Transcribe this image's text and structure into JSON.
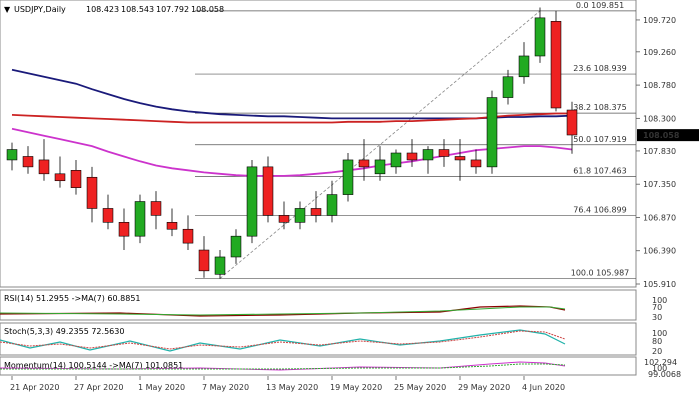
{
  "header": {
    "symbol_label": "USDJPY,Daily",
    "open": "108.423",
    "high": "108.543",
    "low": "107.792",
    "close": "108.058"
  },
  "price_axis": {
    "labels": [
      "109.720",
      "109.260",
      "108.780",
      "108.300",
      "107.830",
      "107.350",
      "106.870",
      "106.390",
      "105.910"
    ],
    "current_price": "108.058",
    "current_price_color": "#000000"
  },
  "fib_levels": [
    {
      "label": "0.0 109.851",
      "price": 109.851
    },
    {
      "label": "23.6 108.939",
      "price": 108.939
    },
    {
      "label": "38.2 108.375",
      "price": 108.375
    },
    {
      "label": "50.0 107.919",
      "price": 107.919
    },
    {
      "label": "61.8 107.463",
      "price": 107.463
    },
    {
      "label": "76.4 106.899",
      "price": 106.899
    },
    {
      "label": "100.0 105.987",
      "price": 105.987
    }
  ],
  "date_axis": {
    "labels": [
      "21 Apr 2020",
      "27 Apr 2020",
      "1 May 2020",
      "7 May 2020",
      "13 May 2020",
      "19 May 2020",
      "25 May 2020",
      "29 May 2020",
      "4 Jun 2020"
    ]
  },
  "indicators": {
    "rsi": {
      "label": "RSI(14) 51.2955 ->MA(7) 60.8851",
      "levels": [
        "100",
        "70",
        "30"
      ]
    },
    "stoch": {
      "label": "Stoch(5,3,3) 49.2355 72.5630",
      "levels": [
        "100",
        "80",
        "20"
      ]
    },
    "momentum": {
      "label": "Momentum(14) 100.5144 ->MA(7) 101.0851",
      "levels": [
        "102.294",
        "100",
        "99.0068"
      ]
    }
  },
  "colors": {
    "bull": "#22aa22",
    "bear": "#ee2222",
    "ma_navy": "#1a1a7a",
    "ma_red": "#cc2222",
    "ma_magenta": "#cc33cc"
  },
  "chart_data": {
    "type": "candlestick",
    "symbol": "USDJPY",
    "timeframe": "Daily",
    "ylim": [
      105.91,
      109.95
    ],
    "candles": [
      {
        "o": 107.7,
        "h": 107.95,
        "l": 107.55,
        "c": 107.85
      },
      {
        "o": 107.75,
        "h": 107.9,
        "l": 107.5,
        "c": 107.6
      },
      {
        "o": 107.7,
        "h": 108.0,
        "l": 107.4,
        "c": 107.5
      },
      {
        "o": 107.5,
        "h": 107.75,
        "l": 107.3,
        "c": 107.4
      },
      {
        "o": 107.55,
        "h": 107.7,
        "l": 107.2,
        "c": 107.3
      },
      {
        "o": 107.45,
        "h": 107.6,
        "l": 106.8,
        "c": 107.0
      },
      {
        "o": 107.0,
        "h": 107.2,
        "l": 106.7,
        "c": 106.8
      },
      {
        "o": 106.8,
        "h": 107.0,
        "l": 106.4,
        "c": 106.6
      },
      {
        "o": 106.6,
        "h": 107.2,
        "l": 106.5,
        "c": 107.1
      },
      {
        "o": 107.1,
        "h": 107.25,
        "l": 106.7,
        "c": 106.9
      },
      {
        "o": 106.8,
        "h": 107.0,
        "l": 106.6,
        "c": 106.7
      },
      {
        "o": 106.7,
        "h": 106.9,
        "l": 106.4,
        "c": 106.5
      },
      {
        "o": 106.4,
        "h": 106.6,
        "l": 106.0,
        "c": 106.1
      },
      {
        "o": 106.05,
        "h": 106.4,
        "l": 105.99,
        "c": 106.3
      },
      {
        "o": 106.3,
        "h": 106.7,
        "l": 106.2,
        "c": 106.6
      },
      {
        "o": 106.6,
        "h": 107.7,
        "l": 106.5,
        "c": 107.6
      },
      {
        "o": 107.6,
        "h": 107.75,
        "l": 106.8,
        "c": 106.9
      },
      {
        "o": 106.9,
        "h": 107.1,
        "l": 106.7,
        "c": 106.8
      },
      {
        "o": 106.8,
        "h": 107.1,
        "l": 106.7,
        "c": 107.0
      },
      {
        "o": 107.0,
        "h": 107.25,
        "l": 106.8,
        "c": 106.9
      },
      {
        "o": 106.9,
        "h": 107.4,
        "l": 106.8,
        "c": 107.2
      },
      {
        "o": 107.2,
        "h": 107.8,
        "l": 107.1,
        "c": 107.7
      },
      {
        "o": 107.7,
        "h": 108.0,
        "l": 107.4,
        "c": 107.6
      },
      {
        "o": 107.5,
        "h": 107.9,
        "l": 107.4,
        "c": 107.7
      },
      {
        "o": 107.6,
        "h": 107.85,
        "l": 107.5,
        "c": 107.8
      },
      {
        "o": 107.8,
        "h": 108.0,
        "l": 107.6,
        "c": 107.7
      },
      {
        "o": 107.7,
        "h": 107.9,
        "l": 107.5,
        "c": 107.85
      },
      {
        "o": 107.85,
        "h": 108.0,
        "l": 107.6,
        "c": 107.75
      },
      {
        "o": 107.75,
        "h": 108.0,
        "l": 107.4,
        "c": 107.7
      },
      {
        "o": 107.7,
        "h": 107.85,
        "l": 107.5,
        "c": 107.6
      },
      {
        "o": 107.6,
        "h": 108.7,
        "l": 107.5,
        "c": 108.6
      },
      {
        "o": 108.6,
        "h": 109.0,
        "l": 108.5,
        "c": 108.9
      },
      {
        "o": 108.9,
        "h": 109.4,
        "l": 108.8,
        "c": 109.2
      },
      {
        "o": 109.2,
        "h": 109.9,
        "l": 109.1,
        "c": 109.75
      },
      {
        "o": 109.7,
        "h": 109.85,
        "l": 108.4,
        "c": 108.45
      },
      {
        "o": 108.42,
        "h": 108.54,
        "l": 107.79,
        "c": 108.06
      }
    ],
    "moving_averages": [
      {
        "color": "#1a1a7a",
        "values": [
          109.0,
          108.95,
          108.9,
          108.85,
          108.8,
          108.72,
          108.65,
          108.58,
          108.52,
          108.47,
          108.43,
          108.4,
          108.38,
          108.36,
          108.35,
          108.34,
          108.33,
          108.33,
          108.32,
          108.31,
          108.3,
          108.3,
          108.3,
          108.3,
          108.3,
          108.3,
          108.3,
          108.3,
          108.3,
          108.3,
          108.31,
          108.32,
          108.32,
          108.33,
          108.33,
          108.34
        ]
      },
      {
        "color": "#cc2222",
        "values": [
          108.35,
          108.34,
          108.33,
          108.32,
          108.31,
          108.3,
          108.29,
          108.28,
          108.27,
          108.26,
          108.25,
          108.24,
          108.24,
          108.24,
          108.24,
          108.24,
          108.24,
          108.24,
          108.24,
          108.24,
          108.24,
          108.25,
          108.25,
          108.25,
          108.26,
          108.26,
          108.27,
          108.28,
          108.29,
          108.3,
          108.32,
          108.34,
          108.35,
          108.36,
          108.37,
          108.37
        ]
      },
      {
        "color": "#cc33cc",
        "values": [
          108.15,
          108.1,
          108.05,
          108.0,
          107.95,
          107.9,
          107.82,
          107.75,
          107.68,
          107.62,
          107.58,
          107.55,
          107.52,
          107.5,
          107.48,
          107.47,
          107.47,
          107.47,
          107.48,
          107.5,
          107.52,
          107.55,
          107.58,
          107.62,
          107.65,
          107.68,
          107.72,
          107.76,
          107.8,
          107.84,
          107.86,
          107.88,
          107.9,
          107.9,
          107.88,
          107.85
        ]
      }
    ]
  }
}
